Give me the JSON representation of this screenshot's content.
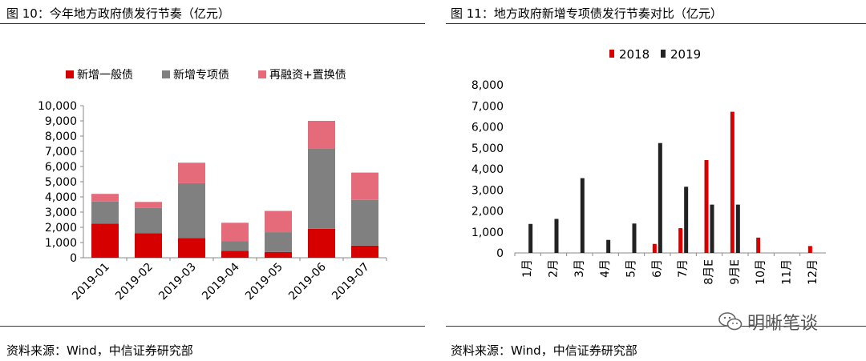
{
  "colors": {
    "red": "#d70000",
    "gray": "#808080",
    "pink": "#e56b7a",
    "black": "#222222",
    "rule": "#c00000"
  },
  "left": {
    "title": "图 10：今年地方政府债发行节奏（亿元）",
    "source": "资料来源：Wind，中信证券研究部"
  },
  "right": {
    "title": "图 11：地方政府新增专项债发行节奏对比（亿元）",
    "source": "资料来源：Wind，中信证券研究部"
  },
  "watermark": {
    "text": "明晰笔谈",
    "icon": "wechat-icon"
  },
  "chart_data": [
    {
      "type": "bar",
      "stacked": true,
      "categories": [
        "2019-01",
        "2019-02",
        "2019-03",
        "2019-04",
        "2019-05",
        "2019-06",
        "2019-07"
      ],
      "series": [
        {
          "name": "新增一般债",
          "color": "#d70000",
          "values": [
            2250,
            1620,
            1300,
            450,
            380,
            1900,
            800
          ]
        },
        {
          "name": "新增专项债",
          "color": "#808080",
          "values": [
            1450,
            1650,
            3600,
            650,
            1300,
            5300,
            3000
          ]
        },
        {
          "name": "再融资+置换债",
          "color": "#e56b7a",
          "values": [
            500,
            400,
            1350,
            1200,
            1400,
            1800,
            1800
          ]
        }
      ],
      "ylim": [
        0,
        10000
      ],
      "yticks": [
        "0",
        "1,000",
        "2,000",
        "3,000",
        "4,000",
        "5,000",
        "6,000",
        "7,000",
        "8,000",
        "9,000",
        "10,000"
      ],
      "legend": "top"
    },
    {
      "type": "bar",
      "categories": [
        "1月",
        "2月",
        "3月",
        "4月",
        "5月",
        "6月",
        "7月",
        "8月E",
        "9月E",
        "10月",
        "11月",
        "12月"
      ],
      "series": [
        {
          "name": "2018",
          "color": "#d70000",
          "values": [
            0,
            0,
            0,
            0,
            0,
            430,
            1180,
            4420,
            6720,
            730,
            0,
            330
          ]
        },
        {
          "name": "2019",
          "color": "#222222",
          "values": [
            1380,
            1620,
            3560,
            620,
            1400,
            5230,
            3150,
            2300,
            2300,
            0,
            0,
            0
          ]
        }
      ],
      "ylim": [
        0,
        8000
      ],
      "yticks": [
        "0",
        "1,000",
        "2,000",
        "3,000",
        "4,000",
        "5,000",
        "6,000",
        "7,000",
        "8,000"
      ],
      "legend": "top"
    }
  ]
}
